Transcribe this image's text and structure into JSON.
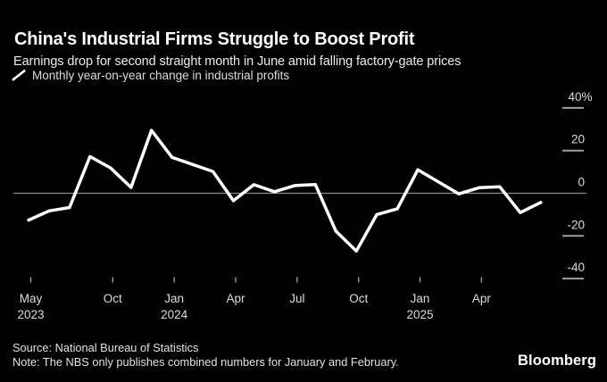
{
  "header": {
    "title": "China's Industrial Firms Struggle to Boost Profit",
    "subtitle": "Earnings drop for second straight month in June amid falling factory-gate prices"
  },
  "legend": {
    "label": "Monthly year-on-year change in industrial profits",
    "marker": "white-diagonal-line",
    "marker_color": "#ffffff"
  },
  "footer": {
    "source": "Source: National Bureau of Statistics",
    "note": "Note: The NBS only publishes combined numbers for January and February.",
    "brand": "Bloomberg"
  },
  "chart_data": {
    "type": "line",
    "title": "China's Industrial Firms Struggle to Boost Profit",
    "unit": "%",
    "background_color": "#000000",
    "line_color": "#ffffff",
    "zero_line": true,
    "zero_line_color": "#8a8a8a",
    "axis_text_color": "#dcdcdc",
    "tick_color": "#9f9f9f",
    "legend_position": "top-left",
    "grid": "zero-line-only",
    "ylim": [
      -48,
      44
    ],
    "yticks": [
      {
        "label": "40%",
        "value": 40
      },
      {
        "label": "20",
        "value": 20
      },
      {
        "label": "0",
        "value": 0
      },
      {
        "label": "-20",
        "value": -20
      },
      {
        "label": "-40",
        "value": -40
      }
    ],
    "xticks": [
      {
        "label": "May",
        "sublabel": "2023",
        "slot": 0
      },
      {
        "label": "Oct",
        "slot": 4
      },
      {
        "label": "Jan",
        "sublabel": "2024",
        "slot": 7
      },
      {
        "label": "Apr",
        "slot": 10
      },
      {
        "label": "Jul",
        "slot": 13
      },
      {
        "label": "Oct",
        "slot": 16
      },
      {
        "label": "Jan",
        "sublabel": "2025",
        "slot": 19
      },
      {
        "label": "Apr",
        "slot": 22
      }
    ],
    "slot_count": 26,
    "series": [
      {
        "name": "Monthly year-on-year change in industrial profits",
        "points": [
          {
            "month": "May 2023",
            "slot": 0,
            "value": -12.6
          },
          {
            "month": "Jun 2023",
            "slot": 1,
            "value": -8.3
          },
          {
            "month": "Jul 2023",
            "slot": 2,
            "value": -6.7
          },
          {
            "month": "Aug 2023",
            "slot": 3,
            "value": 17.2
          },
          {
            "month": "Sep 2023",
            "slot": 4,
            "value": 11.9
          },
          {
            "month": "Oct 2023",
            "slot": 5,
            "value": 2.7
          },
          {
            "month": "Nov 2023",
            "slot": 6,
            "value": 29.5
          },
          {
            "month": "Dec 2023",
            "slot": 7,
            "value": 16.8
          },
          {
            "month": "Jan-Feb 2024",
            "slot": 9,
            "value": 10.2
          },
          {
            "month": "Mar 2024",
            "slot": 10,
            "value": -3.5
          },
          {
            "month": "Apr 2024",
            "slot": 11,
            "value": 4.0
          },
          {
            "month": "May 2024",
            "slot": 12,
            "value": 0.7
          },
          {
            "month": "Jun 2024",
            "slot": 13,
            "value": 3.6
          },
          {
            "month": "Jul 2024",
            "slot": 14,
            "value": 4.1
          },
          {
            "month": "Aug 2024",
            "slot": 15,
            "value": -17.8
          },
          {
            "month": "Sep 2024",
            "slot": 16,
            "value": -27.1
          },
          {
            "month": "Oct 2024",
            "slot": 17,
            "value": -10.0
          },
          {
            "month": "Nov 2024",
            "slot": 18,
            "value": -7.3
          },
          {
            "month": "Dec 2024",
            "slot": 19,
            "value": 11.0
          },
          {
            "month": "Jan-Feb 2025",
            "slot": 21,
            "value": -0.3
          },
          {
            "month": "Mar 2025",
            "slot": 22,
            "value": 2.6
          },
          {
            "month": "Apr 2025",
            "slot": 23,
            "value": 3.0
          },
          {
            "month": "May 2025",
            "slot": 24,
            "value": -9.1
          },
          {
            "month": "Jun 2025",
            "slot": 25,
            "value": -4.3
          }
        ]
      }
    ]
  }
}
